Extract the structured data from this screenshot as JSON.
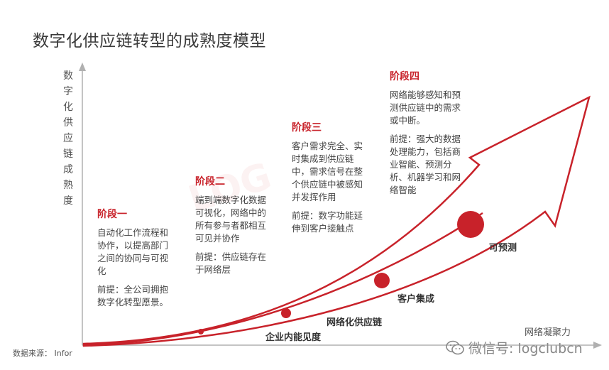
{
  "title": "数字化供应链转型的成熟度模型",
  "y_axis_label": "数字化供应链成熟度",
  "x_axis_label": "网络凝聚力",
  "watermark": "LOG",
  "stages": [
    {
      "title": "阶段一",
      "description": "自动化工作流程和协作，以提高部门之间的协同与可视化",
      "premise": "前提：全公司拥抱数字化转型愿景。"
    },
    {
      "title": "阶段二",
      "description": "端到端数字化数据可视化，网络中的所有参与者都相互可见并协作",
      "premise": "前提：供应链存在于网络层"
    },
    {
      "title": "阶段三",
      "description": "客户需求完全、实时集成到供应链中，需求信号在整个供应链中被感知并发挥作用",
      "premise": "前提：数字功能延伸到客户接触点"
    },
    {
      "title": "阶段四",
      "description": "网络能够感知和预测供应链中的需求或中断。",
      "premise": "前提：强大的数据处理能力，包括商业智能、预测分析、机器学习和网络智能"
    }
  ],
  "milestones": [
    {
      "label": "企业内能见度"
    },
    {
      "label": "网络化供应链"
    },
    {
      "label": "客户集成"
    },
    {
      "label": "可预测"
    }
  ],
  "source": "数据来源： Infor",
  "wechat": "微信号: logclubcn",
  "colors": {
    "accent": "#c8222a",
    "axis": "#b0b0b0"
  },
  "icons": {
    "wechat": "wechat-icon"
  }
}
